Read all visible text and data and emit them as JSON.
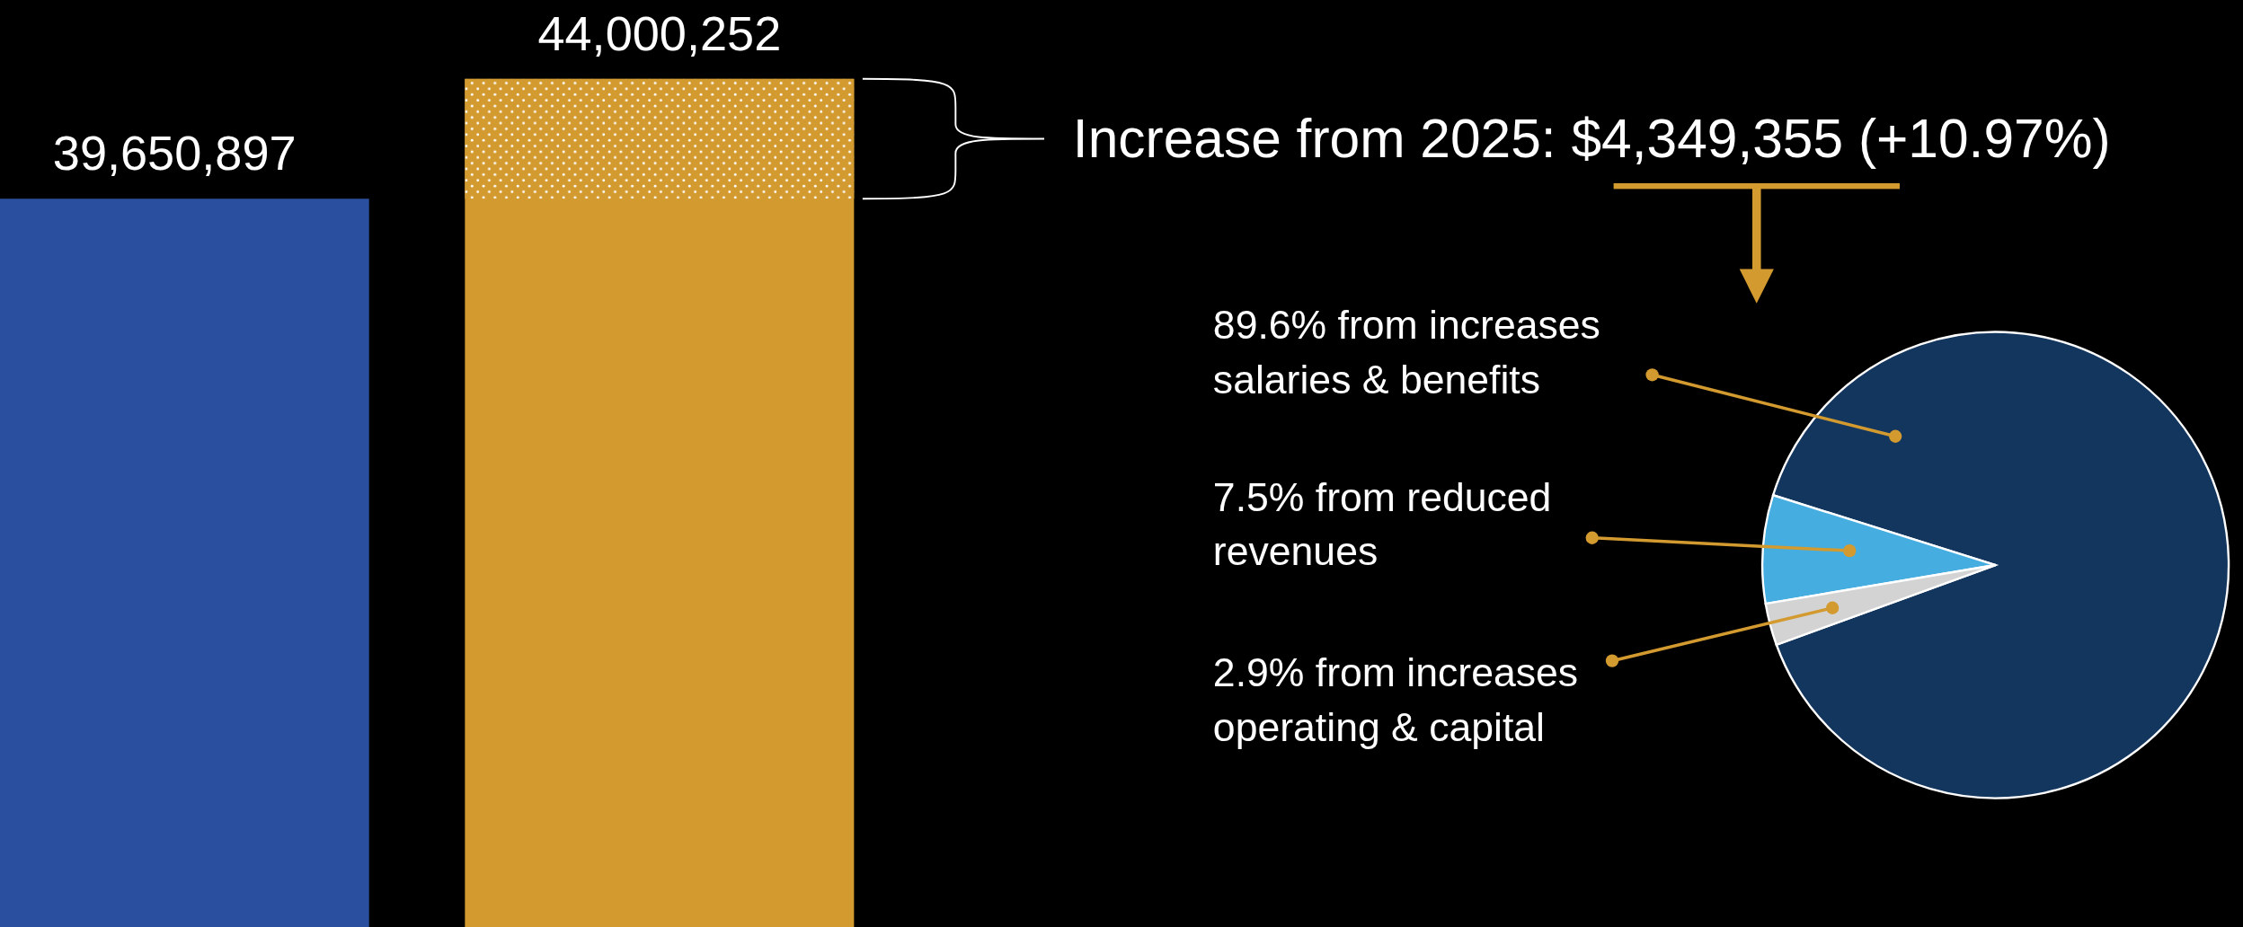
{
  "chart_data": [
    {
      "type": "bar",
      "categories": [
        null,
        null
      ],
      "values": [
        39650897,
        44000252
      ],
      "colors": [
        "#2a4f9f",
        "#d39a30"
      ],
      "value_labels": [
        "39,650,897",
        "44,000,252"
      ],
      "bands": [
        {
          "axis": "y",
          "from": 39650897,
          "to": 44000252,
          "color": "#d39a30"
        }
      ],
      "annotations": [
        "Increase from 2025: $4,349,355 (+10.97%)"
      ]
    },
    {
      "type": "pie",
      "categories": [
        "89.6% from increases salaries & benefits",
        "7.5% from reduced revenues",
        "2.9% from increases operating & capital"
      ],
      "values": [
        89.6,
        7.5,
        2.9
      ],
      "colors": [
        "#13365f",
        "#45ade0",
        "#d3d3d3"
      ]
    }
  ]
}
